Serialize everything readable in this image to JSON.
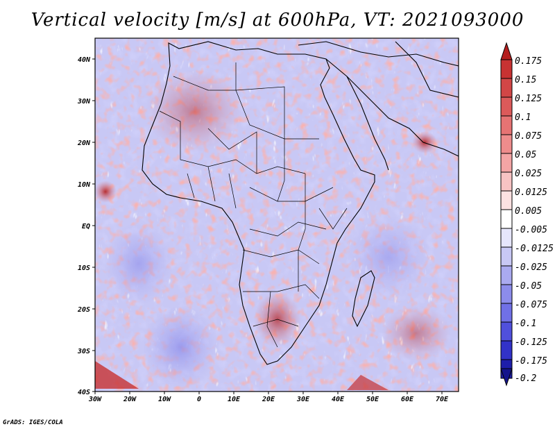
{
  "title": "Vertical velocity [m/s] at 600hPa, VT: 2021093000",
  "credit": "GrADS: IGES/COLA",
  "x_ticks": [
    "30W",
    "20W",
    "10W",
    "0",
    "10E",
    "20E",
    "30E",
    "40E",
    "50E",
    "60E",
    "70E"
  ],
  "y_ticks": [
    "40N",
    "30N",
    "20N",
    "10N",
    "EQ",
    "10S",
    "20S",
    "30S",
    "40S"
  ],
  "colorbar": {
    "labels": [
      "0.175",
      "0.15",
      "0.125",
      "0.1",
      "0.075",
      "0.05",
      "0.025",
      "0.0125",
      "0.005",
      "-0.005",
      "-0.0125",
      "-0.025",
      "-0.05",
      "-0.075",
      "-0.1",
      "-0.125",
      "-0.175",
      "-0.2"
    ],
    "colors": [
      "#b41e1e",
      "#c83232",
      "#d24646",
      "#dc5a5a",
      "#e67373",
      "#ee8c8c",
      "#f4a5a5",
      "#f8c3c3",
      "#fce1e1",
      "#ffffff",
      "#e6e6fc",
      "#c8c8f5",
      "#aaaaf0",
      "#8c8ceb",
      "#7070e6",
      "#5050dc",
      "#3232c8",
      "#1e1eaa",
      "#14148c"
    ]
  },
  "icons": [
    "colorbar-up-arrow-icon",
    "colorbar-down-arrow-icon"
  ]
}
